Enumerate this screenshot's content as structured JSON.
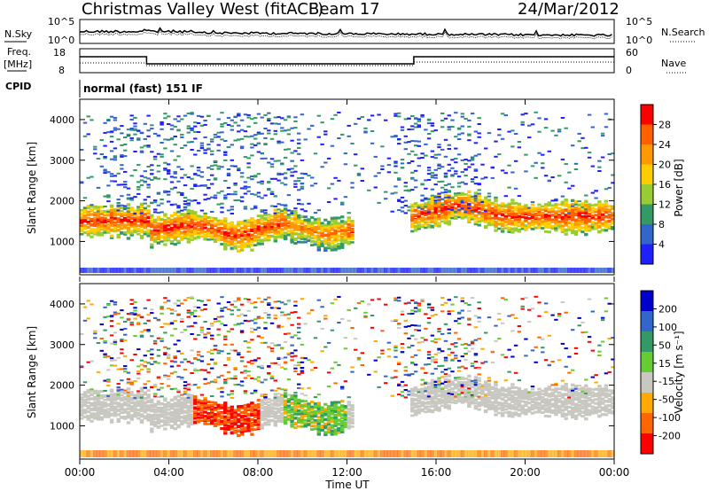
{
  "header": {
    "station": "Christmas Valley West (fitACF)",
    "beam": "Beam 17",
    "date": "24/Mar/2012"
  },
  "noise_panel": {
    "left_label": "N.Sky",
    "left_ticks": [
      "10^5",
      "10^0"
    ],
    "right_label": "N.Search",
    "right_ticks": [
      "10^5",
      "10^0"
    ]
  },
  "freq_panel": {
    "left_label_1": "Freq.",
    "left_label_2": "[MHz]",
    "left_ticks": [
      "18",
      "8"
    ],
    "right_label": "Nave",
    "right_ticks": [
      "60",
      "0"
    ]
  },
  "cpid": {
    "label": "CPID",
    "value": "normal (fast) 151 IF"
  },
  "chart_data": [
    {
      "type": "heatmap",
      "name": "power",
      "ylabel": "Slant Range [km]",
      "ylim": [
        180,
        4500
      ],
      "yticks": [
        "4000",
        "3000",
        "2000",
        "1000"
      ],
      "colorbar_label": "Power [dB]",
      "colorbar_ticks": [
        "28",
        "24",
        "20",
        "16",
        "12",
        "8",
        "4"
      ],
      "colorbar_colors": [
        "#ff0000",
        "#ff6000",
        "#ff9900",
        "#ffcc00",
        "#99cc33",
        "#339966",
        "#3366cc",
        "#2020ff"
      ]
    },
    {
      "type": "heatmap",
      "name": "velocity",
      "ylabel": "Slant Range [km]",
      "ylim": [
        180,
        4500
      ],
      "yticks": [
        "4000",
        "3000",
        "2000",
        "1000"
      ],
      "colorbar_label": "Velocity [m s⁻¹]",
      "colorbar_ticks": [
        "200",
        "100",
        "50",
        "15",
        "-15",
        "-50",
        "-100",
        "-200"
      ],
      "colorbar_colors": [
        "#0000cc",
        "#3366cc",
        "#339966",
        "#66cc33",
        "#c8c8c0",
        "#ffaa00",
        "#ff6600",
        "#ff0000"
      ]
    }
  ],
  "xaxis": {
    "label": "Time UT",
    "ticks": [
      "00:00",
      "04:00",
      "08:00",
      "12:00",
      "16:00",
      "20:00",
      "00:00"
    ]
  }
}
